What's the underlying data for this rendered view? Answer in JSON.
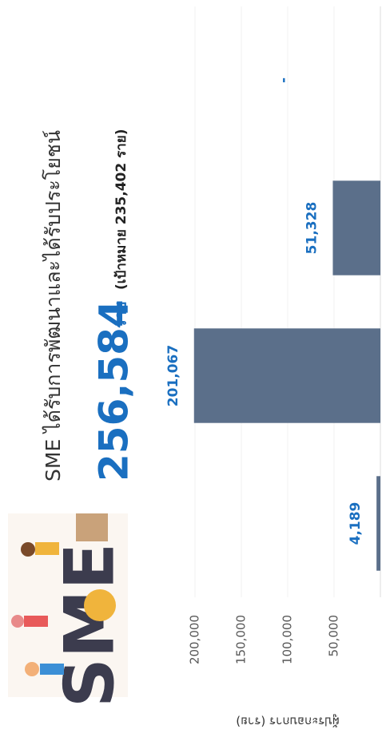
{
  "chart_data": {
    "type": "bar",
    "title": "SME ได้รับการพัฒนาและได้รับประโยชน์",
    "headline_value": "256,584",
    "headline_unit": "ราย",
    "target_note": "(เป้าหมาย 235,402 ราย)",
    "y_label": "ผู้ประกอบการ (ราย)",
    "categories": [
      null,
      null,
      null,
      null
    ],
    "values": [
      4189,
      201067,
      51328,
      null
    ],
    "value_labels": [
      "4,189",
      "201,067",
      "51,328",
      "-"
    ],
    "color": "#5b6f8a",
    "label_color": "#1a6fc0",
    "ylim": [
      0,
      250000
    ],
    "yticks": [
      {
        "value": 50000,
        "label": "50,000"
      },
      {
        "value": 100000,
        "label": "100,000"
      },
      {
        "value": 150000,
        "label": "150,000"
      },
      {
        "value": 200000,
        "label": "200,000"
      }
    ],
    "grid": true
  }
}
